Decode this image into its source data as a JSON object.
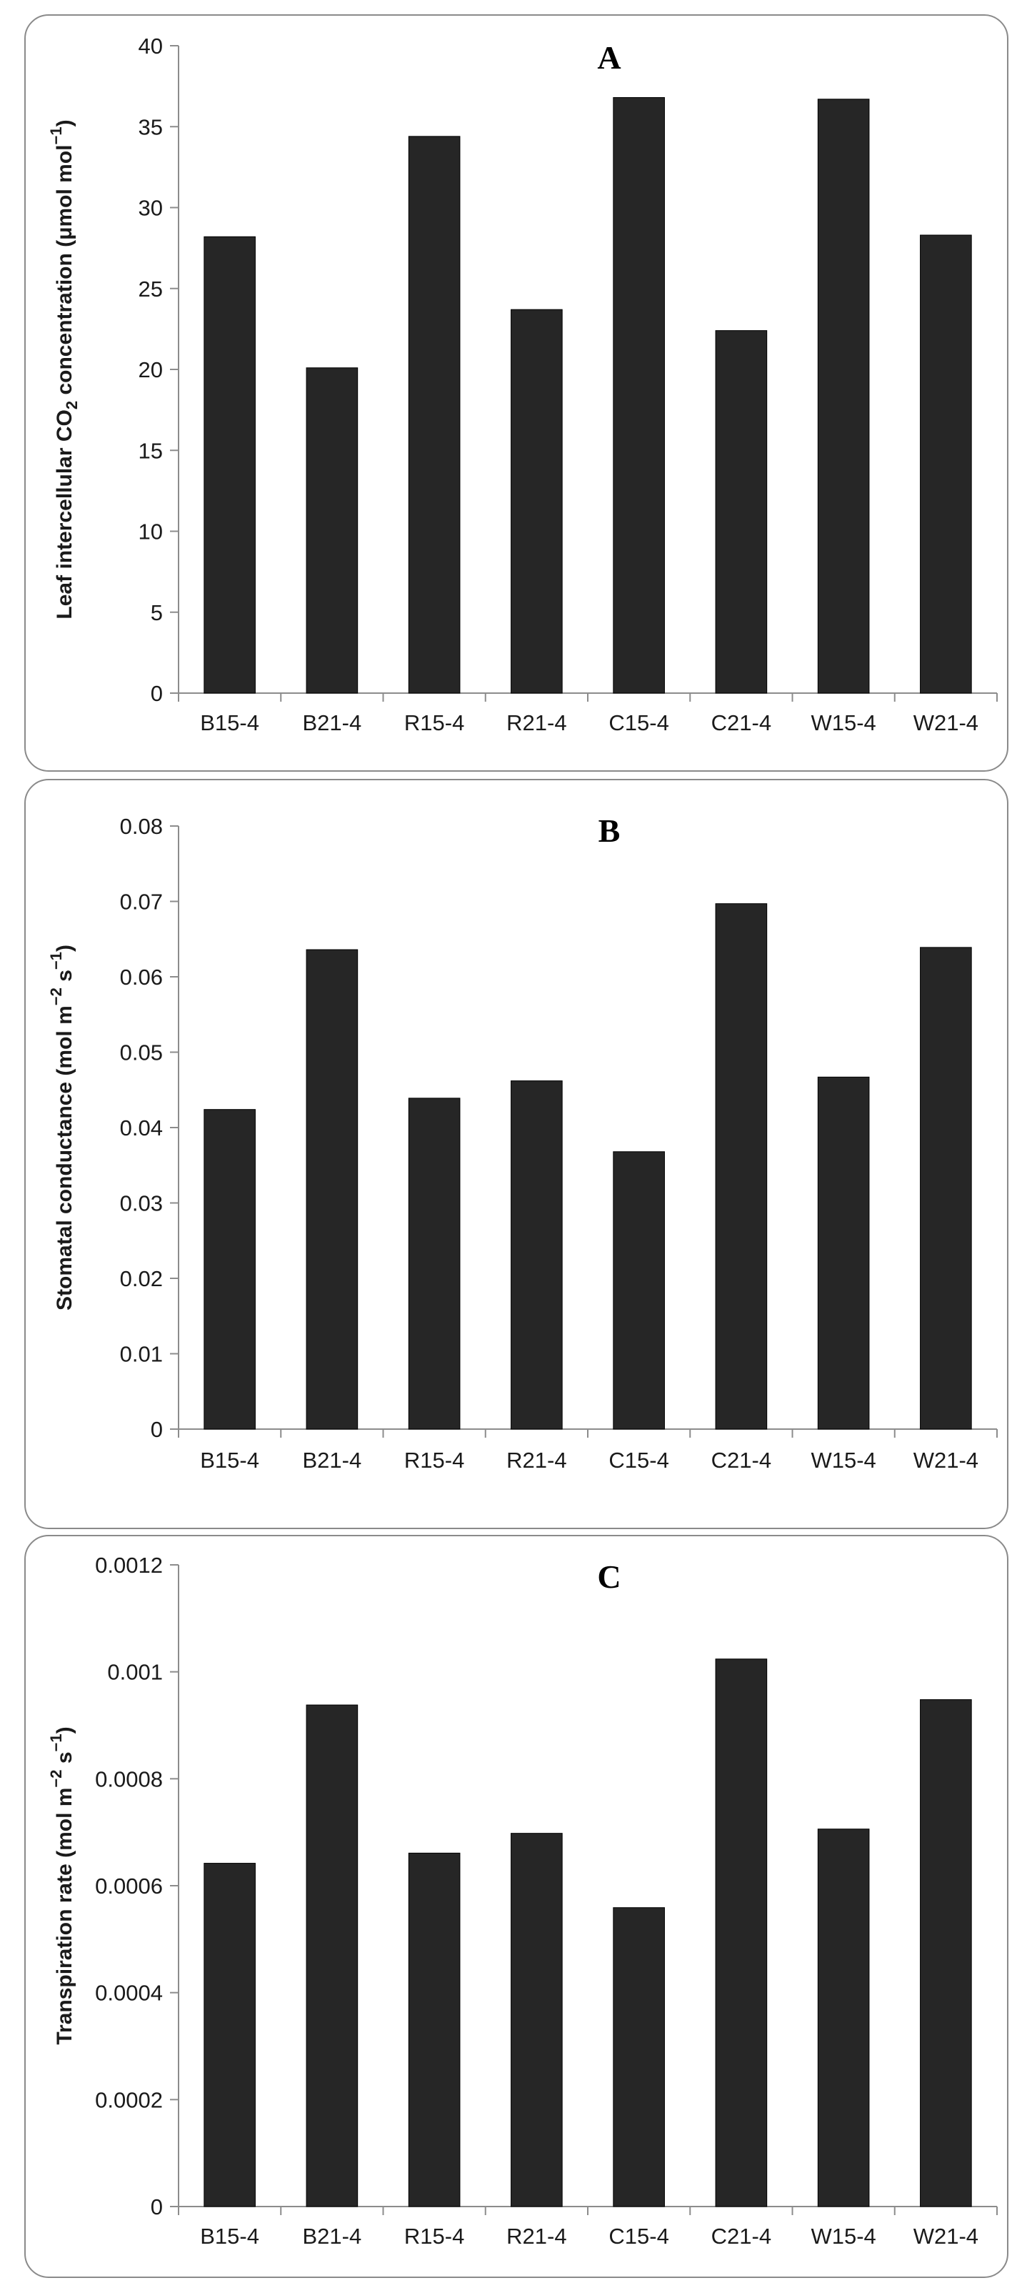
{
  "chart_data": [
    {
      "type": "bar",
      "title": "A",
      "ylabel_main": "Leaf intercellular CO",
      "ylabel_sub": "2",
      "ylabel_tail": " concentration (μmol mol",
      "ylabel_sup": "−1",
      "ylabel_end": ")",
      "categories": [
        "B15-4",
        "B21-4",
        "R15-4",
        "R21-4",
        "C15-4",
        "C21-4",
        "W15-4",
        "W21-4"
      ],
      "values": [
        28.2,
        20.1,
        34.4,
        23.7,
        36.8,
        22.4,
        36.7,
        28.3
      ],
      "ylim": [
        0,
        40
      ],
      "yticks": [
        0,
        5,
        10,
        15,
        20,
        25,
        30,
        35,
        40
      ],
      "ytick_labels": [
        "0",
        "5",
        "10",
        "15",
        "20",
        "25",
        "30",
        "35",
        "40"
      ],
      "grid": false,
      "legend": "none"
    },
    {
      "type": "bar",
      "title": "B",
      "ylabel_main": "Stomatal conductance (mol m",
      "ylabel_sup": "−2",
      "ylabel_tail": " s",
      "ylabel_sup2": "−1",
      "ylabel_end": ")",
      "categories": [
        "B15-4",
        "B21-4",
        "R15-4",
        "R21-4",
        "C15-4",
        "C21-4",
        "W15-4",
        "W21-4"
      ],
      "values": [
        0.0424,
        0.0636,
        0.0439,
        0.0462,
        0.0368,
        0.0697,
        0.0467,
        0.0639
      ],
      "ylim": [
        0,
        0.08
      ],
      "yticks": [
        0,
        0.01,
        0.02,
        0.03,
        0.04,
        0.05,
        0.06,
        0.07,
        0.08
      ],
      "ytick_labels": [
        "0",
        "0.01",
        "0.02",
        "0.03",
        "0.04",
        "0.05",
        "0.06",
        "0.07",
        "0.08"
      ],
      "grid": false,
      "legend": "none"
    },
    {
      "type": "bar",
      "title": "C",
      "ylabel_main": "Transpiration rate (mol m",
      "ylabel_sup": "−2",
      "ylabel_tail": " s",
      "ylabel_sup2": "−1",
      "ylabel_end": ")",
      "categories": [
        "B15-4",
        "B21-4",
        "R15-4",
        "R21-4",
        "C15-4",
        "C21-4",
        "W15-4",
        "W21-4"
      ],
      "values": [
        0.000642,
        0.000938,
        0.000661,
        0.000698,
        0.000559,
        0.001024,
        0.000706,
        0.000948
      ],
      "ylim": [
        0,
        0.0012
      ],
      "yticks": [
        0,
        0.0002,
        0.0004,
        0.0006,
        0.0008,
        0.001,
        0.0012
      ],
      "ytick_labels": [
        "0",
        "0.0002",
        "0.0004",
        "0.0006",
        "0.0008",
        "0.001",
        "0.0012"
      ],
      "grid": false,
      "legend": "none"
    }
  ]
}
